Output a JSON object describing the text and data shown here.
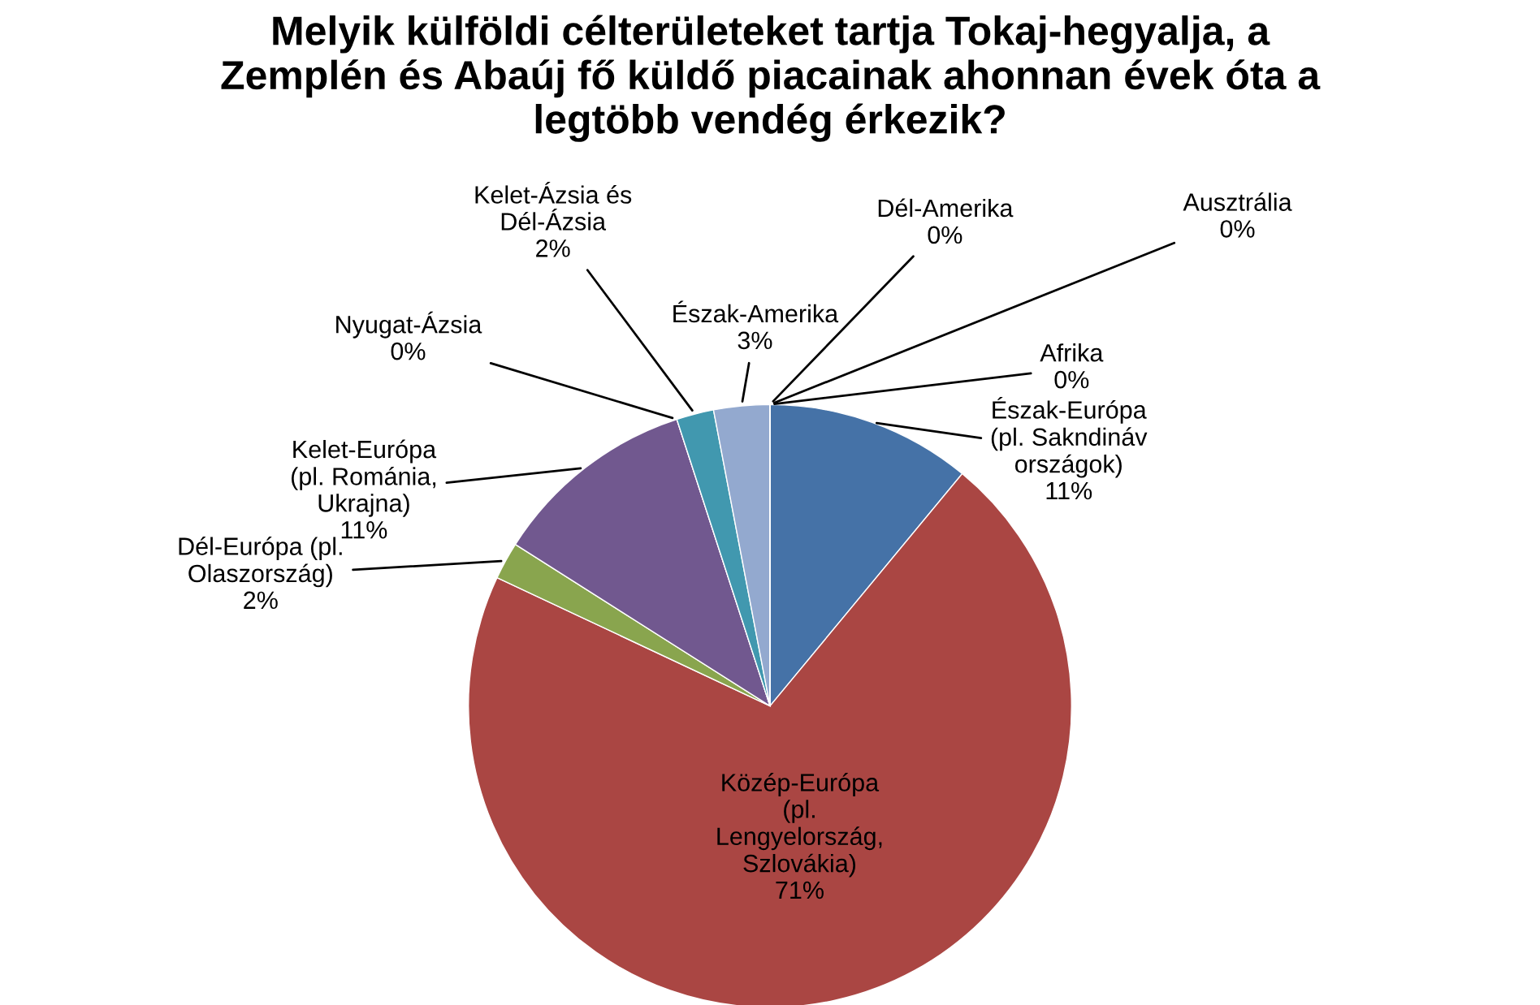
{
  "chart_data": {
    "type": "pie",
    "title": "Melyik külföldi célterületeket tartja Tokaj-hegyalja, a Zemplén és Abaúj fő küldő piacainak ahonnan évek óta a legtöbb vendég érkezik?",
    "categories": [
      "Észak-Európa (pl. Sakndináv országok)",
      "Közép-Európa (pl. Lengyelország, Szlovákia)",
      "Dél-Európa (pl. Olaszország)",
      "Kelet-Európa (pl. Románia, Ukrajna)",
      "Nyugat-Ázsia",
      "Kelet-Ázsia és Dél-Ázsia",
      "Észak-Amerika",
      "Dél-Amerika",
      "Afrika",
      "Ausztrália"
    ],
    "values": [
      11,
      71,
      2,
      11,
      0,
      2,
      3,
      0,
      0,
      0
    ],
    "colors": [
      "#4572a7",
      "#aa4643",
      "#89a54e",
      "#71588f",
      "#db843d",
      "#4198af",
      "#93a9cf",
      "#a47d7c",
      "#b5ca92",
      "#7f6084"
    ],
    "value_labels": [
      "11%",
      "71%",
      "2%",
      "11%",
      "0%",
      "2%",
      "3%",
      "0%",
      "0%",
      "0%"
    ]
  }
}
